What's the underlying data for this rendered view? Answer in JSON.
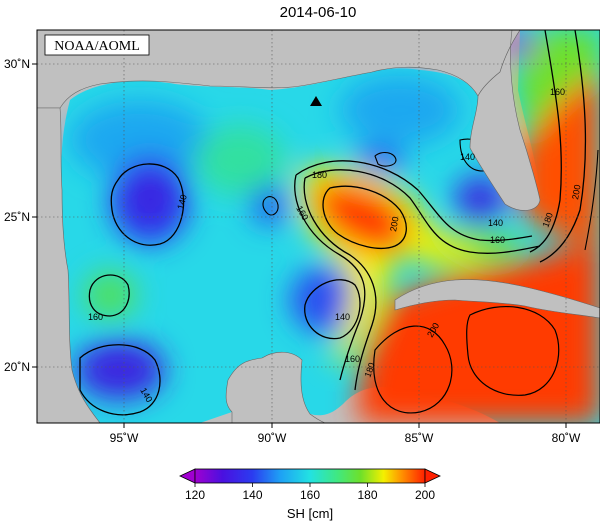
{
  "title": "2014-06-10",
  "credit": "NOAA/AOML",
  "axes": {
    "lon_ticks": [
      "95˚W",
      "90˚W",
      "85˚W",
      "80˚W"
    ],
    "lat_ticks": [
      "30˚N",
      "25˚N",
      "20˚N"
    ]
  },
  "colorbar": {
    "label": "SH [cm]",
    "ticks": [
      "120",
      "140",
      "160",
      "180",
      "200"
    ],
    "range": [
      120,
      200
    ]
  },
  "contour_labels": [
    "140",
    "160",
    "180",
    "200",
    "140",
    "160",
    "180",
    "200",
    "160",
    "140",
    "160",
    "140",
    "160",
    "180",
    "200",
    "140"
  ],
  "marker": {
    "name": "triangle-marker"
  },
  "colors": {
    "land": "#c0c0c0",
    "frame": "#000000",
    "gridline": "#555555"
  }
}
